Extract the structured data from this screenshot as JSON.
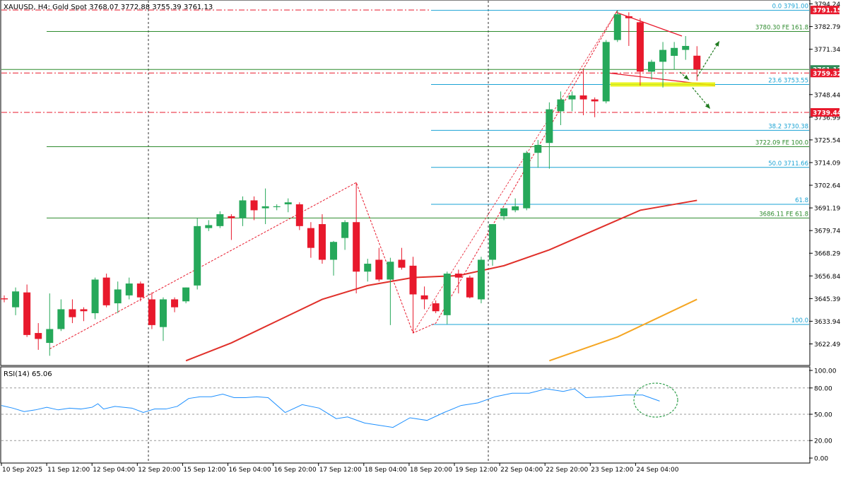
{
  "header": {
    "title": "XAUUSD, H4:  Gold Spot  3768.07 3772.88 3755.39 3761.13"
  },
  "price_panel": {
    "axis_labels": [
      "3794.24",
      "3782.79",
      "3771.34",
      "3748.44",
      "3736.99",
      "3725.54",
      "3714.09",
      "3702.64",
      "3691.19",
      "3679.74",
      "3668.29",
      "3656.84",
      "3645.39",
      "3633.94",
      "3622.49"
    ],
    "price_tags": [
      {
        "id": "tag-3791",
        "text": "3791.15",
        "price": 3791.15,
        "color": "#e8192c"
      },
      {
        "id": "tag-current",
        "text": "3761.13",
        "price": 3761.13,
        "color": "#2e8b57"
      },
      {
        "id": "tag-3759",
        "text": "3759.32",
        "price": 3759.32,
        "color": "#e8192c"
      },
      {
        "id": "tag-3739",
        "text": "3739.44",
        "price": 3739.44,
        "color": "#e8192c"
      }
    ],
    "fib_retracement": [
      {
        "text": "0.0 3791.00",
        "price": 3791.0
      },
      {
        "text": "23.6 3753.55",
        "price": 3753.55
      },
      {
        "text": "38.2 3730.38",
        "price": 3730.38
      },
      {
        "text": "50.0 3711.66",
        "price": 3711.66
      },
      {
        "text": "61.8",
        "price": 3693.0
      },
      {
        "text": "100.0",
        "price": 3632.3
      }
    ],
    "fib_expansion": [
      {
        "text": "3780.30 FE 161.8",
        "price": 3780.3
      },
      {
        "text": "3722.09 FE 100.0",
        "price": 3722.09
      },
      {
        "text": "3686.11 FE 61.8",
        "price": 3686.11
      }
    ],
    "colors": {
      "bull": "#26a85a",
      "bear": "#e8192c",
      "ema_fast": "#e0302a",
      "ema_slow": "#f5a623",
      "fib": "#1aa3d4",
      "fe": "#2e8b2e",
      "grid": "#7a7a7a"
    }
  },
  "rsi_panel": {
    "label": "RSI(14) 65.06",
    "axis_labels": [
      {
        "text": "100.00",
        "v": 100
      },
      {
        "text": "80.00",
        "v": 80
      },
      {
        "text": "50.00",
        "v": 50
      },
      {
        "text": "20.00",
        "v": 20
      },
      {
        "text": "0.00",
        "v": 0
      }
    ]
  },
  "time_axis": [
    "10 Sep 2025",
    "11 Sep 12:00",
    "12 Sep 04:00",
    "12 Sep 20:00",
    "15 Sep 12:00",
    "16 Sep 04:00",
    "16 Sep 20:00",
    "17 Sep 12:00",
    "18 Sep 04:00",
    "18 Sep 20:00",
    "19 Sep 12:00",
    "22 Sep 04:00",
    "22 Sep 20:00",
    "23 Sep 12:00",
    "24 Sep 04:00"
  ],
  "chart_data": {
    "type": "candlestick",
    "symbol": "XAUUSD",
    "timeframe": "H4",
    "ylim": [
      3614.0,
      3797.0
    ],
    "candles": [
      {
        "o": 3645.5,
        "h": 3647.0,
        "l": 3643.5,
        "c": 3645.0
      },
      {
        "o": 3641.0,
        "h": 3651.0,
        "l": 3637.0,
        "c": 3649.0
      },
      {
        "o": 3648.5,
        "h": 3652.5,
        "l": 3626.0,
        "c": 3627.0
      },
      {
        "o": 3628.0,
        "h": 3633.0,
        "l": 3619.5,
        "c": 3625.0
      },
      {
        "o": 3623.0,
        "h": 3648.0,
        "l": 3616.5,
        "c": 3630.0
      },
      {
        "o": 3630.0,
        "h": 3645.0,
        "l": 3629.0,
        "c": 3640.0
      },
      {
        "o": 3640.0,
        "h": 3645.0,
        "l": 3633.0,
        "c": 3636.0
      },
      {
        "o": 3640.0,
        "h": 3641.0,
        "l": 3634.0,
        "c": 3639.0
      },
      {
        "o": 3638.0,
        "h": 3656.0,
        "l": 3635.0,
        "c": 3655.0
      },
      {
        "o": 3656.0,
        "h": 3658.0,
        "l": 3641.0,
        "c": 3642.0
      },
      {
        "o": 3643.0,
        "h": 3654.0,
        "l": 3638.0,
        "c": 3650.0
      },
      {
        "o": 3647.0,
        "h": 3656.0,
        "l": 3645.0,
        "c": 3653.0
      },
      {
        "o": 3653.0,
        "h": 3654.0,
        "l": 3644.0,
        "c": 3646.0
      },
      {
        "o": 3645.0,
        "h": 3648.5,
        "l": 3630.0,
        "c": 3632.0
      },
      {
        "o": 3631.0,
        "h": 3646.0,
        "l": 3624.0,
        "c": 3645.0
      },
      {
        "o": 3645.0,
        "h": 3646.0,
        "l": 3638.5,
        "c": 3641.0
      },
      {
        "o": 3644.0,
        "h": 3651.0,
        "l": 3643.0,
        "c": 3651.0
      },
      {
        "o": 3652.0,
        "h": 3686.0,
        "l": 3650.0,
        "c": 3682.0
      },
      {
        "o": 3681.0,
        "h": 3685.0,
        "l": 3679.5,
        "c": 3682.5
      },
      {
        "o": 3682.0,
        "h": 3689.5,
        "l": 3681.0,
        "c": 3688.0
      },
      {
        "o": 3687.0,
        "h": 3688.0,
        "l": 3675.0,
        "c": 3686.0
      },
      {
        "o": 3686.0,
        "h": 3697.0,
        "l": 3682.0,
        "c": 3695.0
      },
      {
        "o": 3695.0,
        "h": 3697.0,
        "l": 3685.0,
        "c": 3690.0
      },
      {
        "o": 3691.0,
        "h": 3701.0,
        "l": 3683.0,
        "c": 3692.0
      },
      {
        "o": 3692.0,
        "h": 3693.0,
        "l": 3690.0,
        "c": 3692.0
      },
      {
        "o": 3693.0,
        "h": 3696.0,
        "l": 3689.0,
        "c": 3694.0
      },
      {
        "o": 3693.0,
        "h": 3694.0,
        "l": 3680.0,
        "c": 3682.0
      },
      {
        "o": 3681.0,
        "h": 3684.0,
        "l": 3666.0,
        "c": 3671.0
      },
      {
        "o": 3683.0,
        "h": 3688.0,
        "l": 3663.0,
        "c": 3665.0
      },
      {
        "o": 3665.0,
        "h": 3674.5,
        "l": 3657.0,
        "c": 3674.0
      },
      {
        "o": 3676.0,
        "h": 3685.0,
        "l": 3670.0,
        "c": 3684.0
      },
      {
        "o": 3684.0,
        "h": 3704.0,
        "l": 3648.0,
        "c": 3659.0
      },
      {
        "o": 3659.0,
        "h": 3665.5,
        "l": 3654.0,
        "c": 3663.0
      },
      {
        "o": 3665.0,
        "h": 3671.0,
        "l": 3654.0,
        "c": 3655.0
      },
      {
        "o": 3655.0,
        "h": 3666.0,
        "l": 3632.0,
        "c": 3664.0
      },
      {
        "o": 3665.0,
        "h": 3671.0,
        "l": 3660.0,
        "c": 3661.0
      },
      {
        "o": 3662.0,
        "h": 3666.5,
        "l": 3628.0,
        "c": 3647.5
      },
      {
        "o": 3647.0,
        "h": 3651.5,
        "l": 3640.0,
        "c": 3645.0
      },
      {
        "o": 3643.0,
        "h": 3644.5,
        "l": 3638.0,
        "c": 3639.0
      },
      {
        "o": 3637.0,
        "h": 3659.0,
        "l": 3632.5,
        "c": 3658.0
      },
      {
        "o": 3658.0,
        "h": 3660.0,
        "l": 3648.0,
        "c": 3656.0
      },
      {
        "o": 3656.0,
        "h": 3657.0,
        "l": 3645.5,
        "c": 3646.0
      },
      {
        "o": 3645.0,
        "h": 3666.5,
        "l": 3643.0,
        "c": 3665.0
      },
      {
        "o": 3665.0,
        "h": 3683.0,
        "l": 3662.0,
        "c": 3683.0
      },
      {
        "o": 3687.0,
        "h": 3691.0,
        "l": 3685.0,
        "c": 3691.0
      },
      {
        "o": 3690.0,
        "h": 3696.0,
        "l": 3689.0,
        "c": 3692.0
      },
      {
        "o": 3691.0,
        "h": 3720.0,
        "l": 3690.0,
        "c": 3719.0
      },
      {
        "o": 3719.0,
        "h": 3725.5,
        "l": 3711.5,
        "c": 3723.0
      },
      {
        "o": 3724.0,
        "h": 3744.5,
        "l": 3711.0,
        "c": 3741.0
      },
      {
        "o": 3740.0,
        "h": 3750.0,
        "l": 3733.0,
        "c": 3746.0
      },
      {
        "o": 3746.0,
        "h": 3750.0,
        "l": 3740.0,
        "c": 3748.0
      },
      {
        "o": 3748.0,
        "h": 3761.0,
        "l": 3738.0,
        "c": 3746.0
      },
      {
        "o": 3746.0,
        "h": 3747.0,
        "l": 3737.0,
        "c": 3745.0
      },
      {
        "o": 3745.0,
        "h": 3776.0,
        "l": 3744.0,
        "c": 3775.0
      },
      {
        "o": 3776.0,
        "h": 3791.0,
        "l": 3775.0,
        "c": 3789.0
      },
      {
        "o": 3788.0,
        "h": 3790.0,
        "l": 3773.0,
        "c": 3787.0
      },
      {
        "o": 3785.0,
        "h": 3787.0,
        "l": 3753.0,
        "c": 3760.0
      },
      {
        "o": 3760.0,
        "h": 3766.0,
        "l": 3756.0,
        "c": 3765.0
      },
      {
        "o": 3765.0,
        "h": 3775.0,
        "l": 3752.0,
        "c": 3771.0
      },
      {
        "o": 3768.0,
        "h": 3775.0,
        "l": 3761.0,
        "c": 3772.0
      },
      {
        "o": 3771.0,
        "h": 3778.0,
        "l": 3766.0,
        "c": 3773.0
      },
      {
        "o": 3768.07,
        "h": 3772.88,
        "l": 3755.39,
        "c": 3761.13
      }
    ],
    "ema_fast": [
      {
        "i": 16,
        "v": 3614
      },
      {
        "i": 20,
        "v": 3623
      },
      {
        "i": 24,
        "v": 3634
      },
      {
        "i": 28,
        "v": 3645
      },
      {
        "i": 32,
        "v": 3652
      },
      {
        "i": 36,
        "v": 3656
      },
      {
        "i": 40,
        "v": 3657
      },
      {
        "i": 44,
        "v": 3662
      },
      {
        "i": 48,
        "v": 3670
      },
      {
        "i": 52,
        "v": 3680
      },
      {
        "i": 56,
        "v": 3690
      },
      {
        "i": 61,
        "v": 3695
      }
    ],
    "ema_slow": [
      {
        "i": 48,
        "v": 3614
      },
      {
        "i": 54,
        "v": 3626
      },
      {
        "i": 61,
        "v": 3645
      }
    ],
    "rsi": [
      {
        "i": 0,
        "v": 60
      },
      {
        "i": 2,
        "v": 57
      },
      {
        "i": 4,
        "v": 53
      },
      {
        "i": 6,
        "v": 55
      },
      {
        "i": 8,
        "v": 58
      },
      {
        "i": 10,
        "v": 55
      },
      {
        "i": 12,
        "v": 57
      },
      {
        "i": 14,
        "v": 56
      },
      {
        "i": 16,
        "v": 58
      },
      {
        "i": 17,
        "v": 62
      },
      {
        "i": 18,
        "v": 56
      },
      {
        "i": 20,
        "v": 59
      },
      {
        "i": 23,
        "v": 57
      },
      {
        "i": 25,
        "v": 52
      },
      {
        "i": 27,
        "v": 56
      },
      {
        "i": 29,
        "v": 56
      },
      {
        "i": 31,
        "v": 59
      },
      {
        "i": 33,
        "v": 68
      },
      {
        "i": 35,
        "v": 70
      },
      {
        "i": 37,
        "v": 70
      },
      {
        "i": 39,
        "v": 73
      },
      {
        "i": 41,
        "v": 69
      },
      {
        "i": 43,
        "v": 69
      },
      {
        "i": 45,
        "v": 70
      },
      {
        "i": 47,
        "v": 69
      },
      {
        "i": 50,
        "v": 52
      },
      {
        "i": 53,
        "v": 61
      },
      {
        "i": 56,
        "v": 57
      },
      {
        "i": 59,
        "v": 45
      },
      {
        "i": 61,
        "v": 47
      },
      {
        "i": 64,
        "v": 40
      },
      {
        "i": 66,
        "v": 38
      },
      {
        "i": 69,
        "v": 35
      },
      {
        "i": 72,
        "v": 46
      },
      {
        "i": 75,
        "v": 43
      },
      {
        "i": 78,
        "v": 52
      },
      {
        "i": 81,
        "v": 60
      },
      {
        "i": 84,
        "v": 63
      },
      {
        "i": 87,
        "v": 70
      },
      {
        "i": 90,
        "v": 74
      },
      {
        "i": 93,
        "v": 74
      },
      {
        "i": 96,
        "v": 79
      },
      {
        "i": 99,
        "v": 76
      },
      {
        "i": 101,
        "v": 79
      },
      {
        "i": 103,
        "v": 69
      },
      {
        "i": 106,
        "v": 70
      },
      {
        "i": 110,
        "v": 72
      },
      {
        "i": 113,
        "v": 72
      },
      {
        "i": 116,
        "v": 65
      }
    ]
  }
}
